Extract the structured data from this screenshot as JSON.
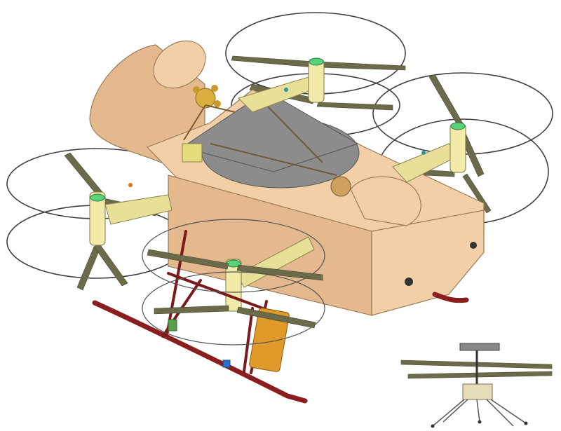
{
  "figure": {
    "main_drawing": "rotorcraft-cad-model",
    "inset_drawing": "mars-helicopter-inset",
    "colors": {
      "body": "#f2cfa7",
      "arms": "#e8df98",
      "rotor_ring": "#404040",
      "blades": "#6b6a4a",
      "skids": "#8a1e1e",
      "top_plate": "#8c8c8c",
      "battery": "#e09a2a",
      "motor_band": "#59d27a"
    }
  }
}
